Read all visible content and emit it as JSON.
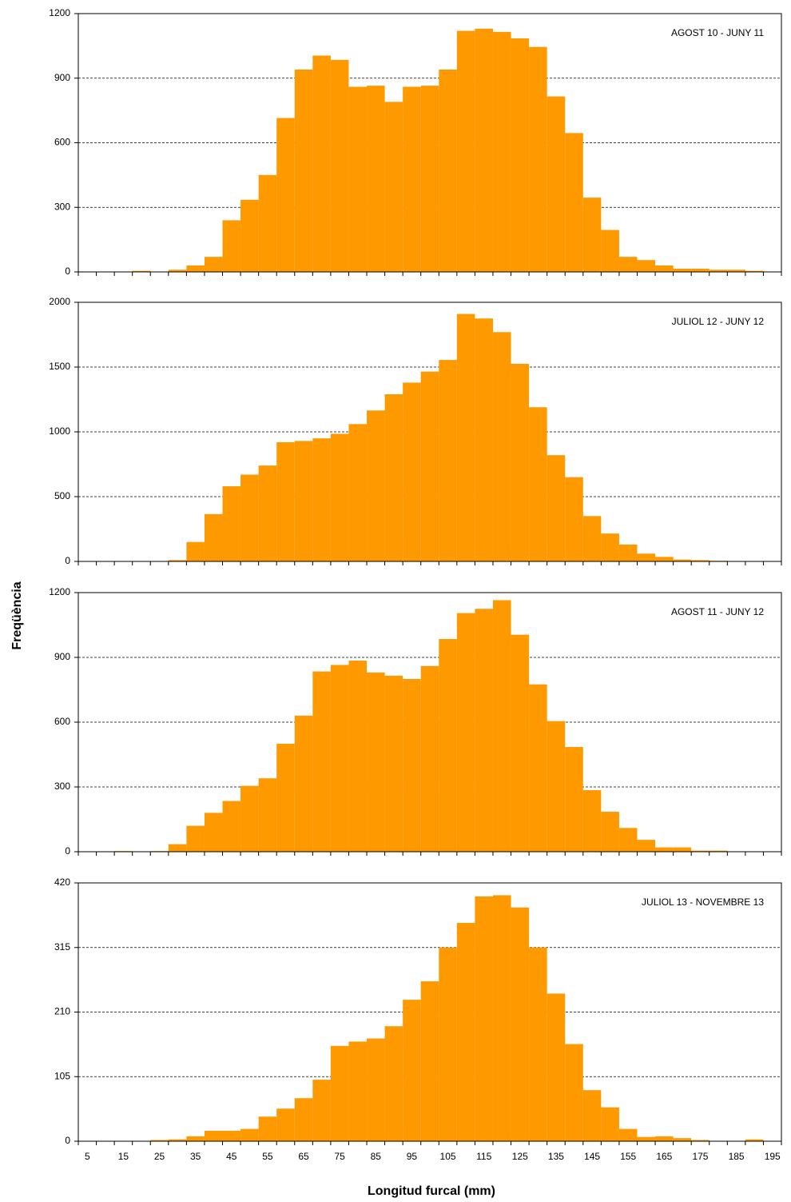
{
  "ylabel": "Freqüència",
  "xlabel": "Longitud furcal (mm)",
  "chart_data": [
    {
      "type": "histogram",
      "annotation": "AGOST 10 - JUNY 11",
      "color": "#ff9900",
      "grid": true,
      "bins": [
        2.5,
        7.5,
        12.5,
        17.5,
        22.5,
        27.5,
        32.5,
        37.5,
        42.5,
        47.5,
        52.5,
        57.5,
        62.5,
        67.5,
        72.5,
        77.5,
        82.5,
        87.5,
        92.5,
        97.5,
        102.5,
        107.5,
        112.5,
        117.5,
        122.5,
        127.5,
        132.5,
        137.5,
        142.5,
        147.5,
        152.5,
        157.5,
        162.5,
        167.5,
        172.5,
        177.5,
        182.5,
        187.5,
        192.5,
        197.5
      ],
      "values": [
        0,
        0,
        0,
        5,
        0,
        10,
        30,
        70,
        240,
        335,
        450,
        715,
        940,
        1005,
        985,
        860,
        865,
        790,
        860,
        865,
        940,
        1120,
        1130,
        1115,
        1085,
        1045,
        815,
        645,
        345,
        195,
        70,
        55,
        30,
        15,
        15,
        10,
        10,
        5,
        0
      ],
      "xlim": [
        2.5,
        197.5
      ],
      "ylim": [
        0,
        1200
      ],
      "yticks": [
        0,
        300,
        600,
        900,
        1200
      ]
    },
    {
      "type": "histogram",
      "annotation": "JULIOL 12 - JUNY 12",
      "color": "#ff9900",
      "grid": true,
      "bins": [
        2.5,
        7.5,
        12.5,
        17.5,
        22.5,
        27.5,
        32.5,
        37.5,
        42.5,
        47.5,
        52.5,
        57.5,
        62.5,
        67.5,
        72.5,
        77.5,
        82.5,
        87.5,
        92.5,
        97.5,
        102.5,
        107.5,
        112.5,
        117.5,
        122.5,
        127.5,
        132.5,
        137.5,
        142.5,
        147.5,
        152.5,
        157.5,
        162.5,
        167.5,
        172.5,
        177.5,
        182.5,
        187.5,
        192.5,
        197.5
      ],
      "values": [
        0,
        0,
        0,
        0,
        0,
        10,
        150,
        365,
        580,
        670,
        740,
        920,
        930,
        950,
        985,
        1060,
        1165,
        1290,
        1380,
        1465,
        1555,
        1910,
        1875,
        1770,
        1525,
        1190,
        820,
        650,
        350,
        215,
        130,
        60,
        35,
        15,
        10,
        5,
        0,
        0,
        0
      ],
      "xlim": [
        2.5,
        197.5
      ],
      "ylim": [
        0,
        2000
      ],
      "yticks": [
        0,
        500,
        1000,
        1500,
        2000
      ]
    },
    {
      "type": "histogram",
      "annotation": "AGOST 11 - JUNY 12",
      "color": "#ff9900",
      "grid": true,
      "bins": [
        2.5,
        7.5,
        12.5,
        17.5,
        22.5,
        27.5,
        32.5,
        37.5,
        42.5,
        47.5,
        52.5,
        57.5,
        62.5,
        67.5,
        72.5,
        77.5,
        82.5,
        87.5,
        92.5,
        97.5,
        102.5,
        107.5,
        112.5,
        117.5,
        122.5,
        127.5,
        132.5,
        137.5,
        142.5,
        147.5,
        152.5,
        157.5,
        162.5,
        167.5,
        172.5,
        177.5,
        182.5,
        187.5,
        192.5,
        197.5
      ],
      "values": [
        0,
        0,
        3,
        0,
        3,
        35,
        120,
        180,
        235,
        305,
        340,
        500,
        630,
        835,
        865,
        885,
        830,
        815,
        800,
        860,
        985,
        1105,
        1125,
        1165,
        1005,
        775,
        605,
        485,
        285,
        185,
        110,
        55,
        20,
        20,
        5,
        5,
        0,
        0,
        0
      ],
      "xlim": [
        2.5,
        197.5
      ],
      "ylim": [
        0,
        1200
      ],
      "yticks": [
        0,
        300,
        600,
        900,
        1200
      ]
    },
    {
      "type": "histogram",
      "annotation": "JULIOL 13 - NOVEMBRE 13",
      "color": "#ff9900",
      "grid": true,
      "bins": [
        2.5,
        7.5,
        12.5,
        17.5,
        22.5,
        27.5,
        32.5,
        37.5,
        42.5,
        47.5,
        52.5,
        57.5,
        62.5,
        67.5,
        72.5,
        77.5,
        82.5,
        87.5,
        92.5,
        97.5,
        102.5,
        107.5,
        112.5,
        117.5,
        122.5,
        127.5,
        132.5,
        137.5,
        142.5,
        147.5,
        152.5,
        157.5,
        162.5,
        167.5,
        172.5,
        177.5,
        182.5,
        187.5,
        192.5,
        197.5
      ],
      "values": [
        0,
        0,
        0,
        0,
        2,
        3,
        8,
        17,
        17,
        20,
        40,
        53,
        70,
        100,
        155,
        162,
        167,
        187,
        230,
        260,
        315,
        355,
        398,
        400,
        380,
        315,
        240,
        158,
        83,
        55,
        20,
        7,
        8,
        5,
        2,
        0,
        0,
        3,
        0
      ],
      "xlim": [
        2.5,
        197.5
      ],
      "ylim": [
        0,
        420
      ],
      "yticks": [
        0,
        105,
        210,
        315,
        420
      ],
      "xticks": [
        5,
        15,
        25,
        35,
        45,
        55,
        65,
        75,
        85,
        95,
        105,
        115,
        125,
        135,
        145,
        155,
        165,
        175,
        185,
        195
      ]
    }
  ]
}
